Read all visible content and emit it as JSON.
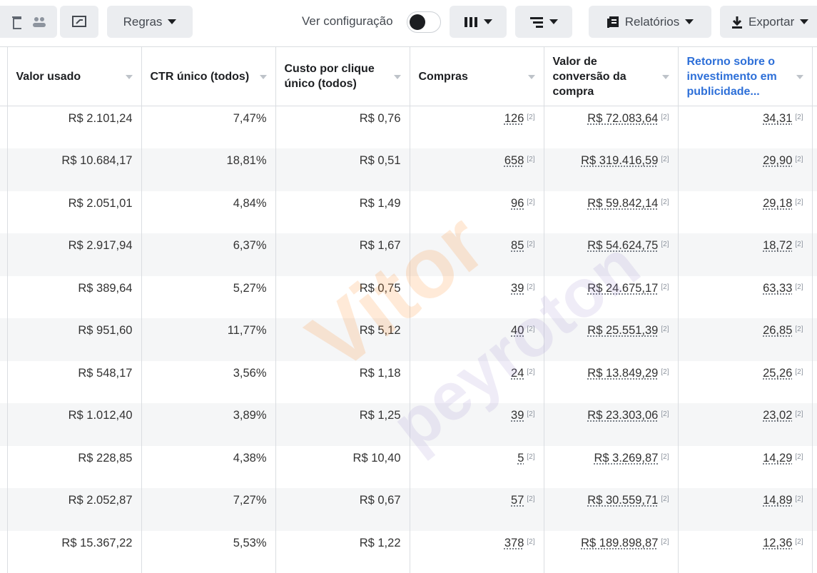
{
  "toolbar": {
    "rules": "Regras",
    "view_setting": "Ver configuração",
    "reports": "Relatórios",
    "export": "Exportar"
  },
  "table": {
    "headers": [
      "Valor usado",
      "CTR único (todos)",
      "Custo por clique único (todos)",
      "Compras",
      "Valor de conversão da compra",
      "Retorno sobre o investimento em publicidade..."
    ],
    "note_marker": "[2]",
    "rows": [
      [
        "R$ 2.101,24",
        "7,47%",
        "R$ 0,76",
        "126",
        "R$ 72.083,64",
        "34,31"
      ],
      [
        "R$ 10.684,17",
        "18,81%",
        "R$ 0,51",
        "658",
        "R$ 319.416,59",
        "29,90"
      ],
      [
        "R$ 2.051,01",
        "4,84%",
        "R$ 1,49",
        "96",
        "R$ 59.842,14",
        "29,18"
      ],
      [
        "R$ 2.917,94",
        "6,37%",
        "R$ 1,67",
        "85",
        "R$ 54.624,75",
        "18,72"
      ],
      [
        "R$ 389,64",
        "5,27%",
        "R$ 0,75",
        "39",
        "R$ 24.675,17",
        "63,33"
      ],
      [
        "R$ 951,60",
        "11,77%",
        "R$ 5,12",
        "40",
        "R$ 25.551,39",
        "26,85"
      ],
      [
        "R$ 548,17",
        "3,56%",
        "R$ 1,18",
        "24",
        "R$ 13.849,29",
        "25,26"
      ],
      [
        "R$ 1.012,40",
        "3,89%",
        "R$ 1,25",
        "39",
        "R$ 23.303,06",
        "23,02"
      ],
      [
        "R$ 228,85",
        "4,38%",
        "R$ 10,40",
        "5",
        "R$ 3.269,87",
        "14,29"
      ],
      [
        "R$ 2.052,87",
        "7,27%",
        "R$ 0,67",
        "57",
        "R$ 30.559,71",
        "14,89"
      ],
      [
        "R$ 15.367,22",
        "5,53%",
        "R$ 1,22",
        "378",
        "R$ 189.898,87",
        "12,36"
      ]
    ]
  },
  "watermark": [
    "Vitor",
    "peyroton"
  ]
}
